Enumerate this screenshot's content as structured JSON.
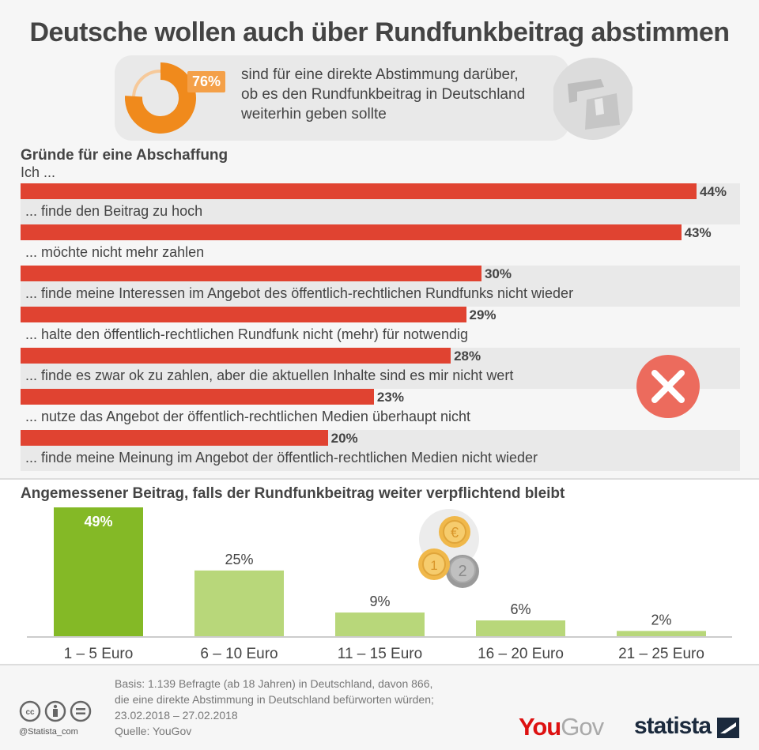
{
  "title": "Deutsche wollen auch über Rundfunkbeitrag abstimmen",
  "callout": {
    "percent_label": "76%",
    "percent_value": 76,
    "lines": [
      "sind für eine direkte Abstimmung darüber,",
      "ob es den Rundfunkbeitrag in Deutschland",
      "weiterhin geben sollte"
    ],
    "colors": {
      "primary": "#f08a1c",
      "light": "#f6c99a",
      "badge": "#f4a048"
    }
  },
  "chart_data": [
    {
      "type": "bar",
      "orientation": "horizontal",
      "title": "Gründe für eine Abschaffung",
      "subtitle": "Ich ...",
      "categories": [
        "... finde den Beitrag zu hoch",
        "... möchte nicht mehr zahlen",
        "... finde meine Interessen im Angebot des öffentlich-rechtlichen Rundfunks nicht wieder",
        "... halte den öffentlich-rechtlichen Rundfunk nicht (mehr) für notwendig",
        "... finde es zwar ok zu zahlen, aber die aktuellen Inhalte sind es mir nicht wert",
        "... nutze das Angebot der öffentlich-rechtlichen Medien überhaupt nicht",
        "... finde meine Meinung im Angebot der öffentlich-rechtlichen Medien nicht wieder"
      ],
      "values": [
        44,
        43,
        30,
        29,
        28,
        23,
        20
      ],
      "value_labels": [
        "44%",
        "43%",
        "30%",
        "29%",
        "28%",
        "23%",
        "20%"
      ],
      "unit": "%",
      "xlim": [
        0,
        44
      ],
      "color": "#e04331"
    },
    {
      "type": "bar",
      "orientation": "vertical",
      "title": "Angemessener Beitrag, falls der Rundfunkbeitrag weiter verpflichtend bleibt",
      "categories": [
        "1 – 5 Euro",
        "6 – 10 Euro",
        "11 – 15 Euro",
        "16 – 20 Euro",
        "21 – 25 Euro"
      ],
      "values": [
        49,
        25,
        9,
        6,
        2
      ],
      "value_labels": [
        "49%",
        "25%",
        "9%",
        "6%",
        "2%"
      ],
      "unit": "%",
      "ylim": [
        0,
        49
      ],
      "colors": {
        "highlight": "#84b926",
        "default": "#b8d77a"
      }
    }
  ],
  "footer": {
    "basis_lines": [
      "Basis: 1.139 Befragte (ab 18 Jahren) in Deutschland, davon 866,",
      "die eine direkte Abstimmung in Deutschland befürworten würden;",
      "23.02.2018 – 27.02.2018"
    ],
    "source": "Quelle: YouGov",
    "handle": "@Statista_com",
    "yougov_you": "You",
    "yougov_gov": "Gov",
    "statista": "statista"
  }
}
